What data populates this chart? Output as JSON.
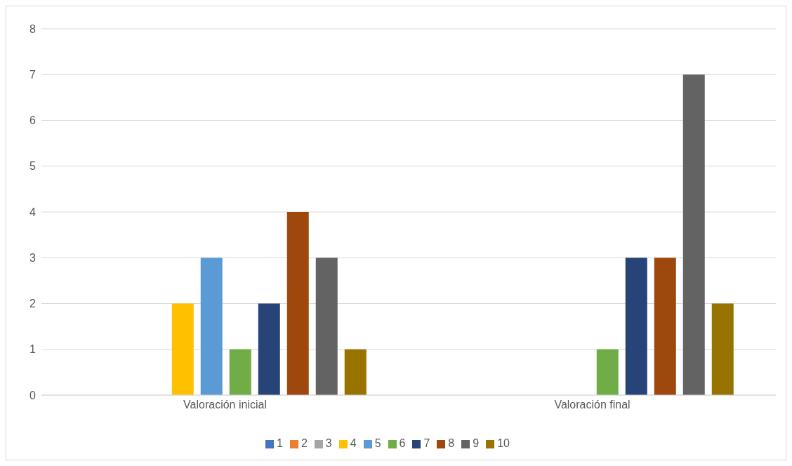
{
  "chart_data": {
    "type": "bar",
    "categories": [
      "Valoración inicial",
      "Valoración final"
    ],
    "series": [
      {
        "name": "1",
        "color": "#4472c4",
        "values": [
          0,
          0
        ]
      },
      {
        "name": "2",
        "color": "#ed7d31",
        "values": [
          0,
          0
        ]
      },
      {
        "name": "3",
        "color": "#a5a5a5",
        "values": [
          0,
          0
        ]
      },
      {
        "name": "4",
        "color": "#ffc000",
        "values": [
          2,
          0
        ]
      },
      {
        "name": "5",
        "color": "#5b9bd5",
        "values": [
          3,
          0
        ]
      },
      {
        "name": "6",
        "color": "#70ad47",
        "values": [
          1,
          1
        ]
      },
      {
        "name": "7",
        "color": "#264478",
        "values": [
          2,
          3
        ]
      },
      {
        "name": "8",
        "color": "#9e480e",
        "values": [
          4,
          3
        ]
      },
      {
        "name": "9",
        "color": "#636363",
        "values": [
          3,
          7
        ]
      },
      {
        "name": "10",
        "color": "#997300",
        "values": [
          1,
          2
        ]
      }
    ],
    "ylim": [
      0,
      8
    ],
    "yticks": [
      0,
      1,
      2,
      3,
      4,
      5,
      6,
      7,
      8
    ],
    "grid": "y",
    "legend": "bottom"
  }
}
